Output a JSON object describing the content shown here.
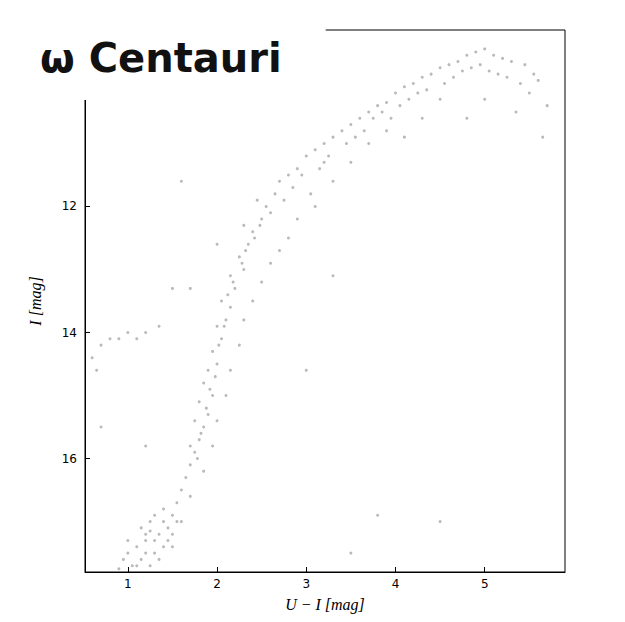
{
  "chart_data": {
    "type": "scatter",
    "title": "ω Centauri",
    "x_label": "U − I [mag]",
    "y_label": "I [mag]",
    "color": "#8a8a8a",
    "marker": "circle",
    "grid": false,
    "xlim": [
      0.52,
      5.9
    ],
    "xticks": [
      1,
      2,
      3,
      4,
      5
    ],
    "ylim": [
      17.8,
      9.2
    ],
    "yticks": [
      12,
      14,
      16
    ],
    "x": [
      1.05,
      1.15,
      1.25,
      1.3,
      1.1,
      1.2,
      1.35,
      1.4,
      0.95,
      1.0,
      1.15,
      1.25,
      1.45,
      1.5,
      1.3,
      1.55,
      1.6,
      1.4,
      1.2,
      0.9,
      1.65,
      1.7,
      1.75,
      1.8,
      1.7,
      1.85,
      1.75,
      1.9,
      1.8,
      1.95,
      1.85,
      1.9,
      2.0,
      1.95,
      2.05,
      2.0,
      2.1,
      2.15,
      2.05,
      2.2,
      2.15,
      2.3,
      2.25,
      2.35,
      2.4,
      2.3,
      2.5,
      2.55,
      2.45,
      2.65,
      2.7,
      2.8,
      2.9,
      3.0,
      3.1,
      3.2,
      3.3,
      3.4,
      3.5,
      3.6,
      3.7,
      3.8,
      3.9,
      4.0,
      4.1,
      4.2,
      4.3,
      4.4,
      4.5,
      4.6,
      4.7,
      4.8,
      4.9,
      5.0,
      5.1,
      5.2,
      5.3,
      5.45,
      5.6,
      5.7,
      5.5,
      5.35,
      5.0,
      4.8,
      4.5,
      4.3,
      4.1,
      3.9,
      3.7,
      3.5,
      3.3,
      3.1,
      2.9,
      3.05,
      3.2,
      2.8,
      2.6,
      2.7,
      2.5,
      2.4,
      2.3,
      2.25,
      2.15,
      2.1,
      2.0,
      1.95,
      1.85,
      1.7,
      1.6,
      1.5,
      0.6,
      0.7,
      0.8,
      0.9,
      1.0,
      1.1,
      1.2,
      1.35,
      1.5,
      0.65,
      1.6,
      2.0,
      3.3,
      3.8,
      4.5,
      3.5,
      1.7,
      0.7,
      1.2,
      3.0,
      1.78,
      1.82,
      1.88,
      1.92,
      1.98,
      2.02,
      2.08,
      2.12,
      2.18,
      2.28,
      2.32,
      2.42,
      2.48,
      2.6,
      2.75,
      2.85,
      2.95,
      3.15,
      3.25,
      3.45,
      3.55,
      3.65,
      3.75,
      3.85,
      3.95,
      4.05,
      4.15,
      4.25,
      4.35,
      4.55,
      4.65,
      4.75,
      4.85,
      4.95,
      5.05,
      5.15,
      5.25,
      5.4,
      5.55,
      5.65,
      1.0,
      1.1,
      1.2,
      1.3,
      1.35,
      1.45,
      1.25,
      1.5,
      1.55,
      1.4
    ],
    "values": [
      17.7,
      17.6,
      17.7,
      17.5,
      17.4,
      17.3,
      17.2,
      17.4,
      17.6,
      17.3,
      17.1,
      17.0,
      17.1,
      16.9,
      16.9,
      16.7,
      16.5,
      16.8,
      17.2,
      17.75,
      16.3,
      16.1,
      15.9,
      15.7,
      15.8,
      15.5,
      15.4,
      15.3,
      15.1,
      15.0,
      14.8,
      14.6,
      14.5,
      14.3,
      14.1,
      13.9,
      13.8,
      13.6,
      13.5,
      13.3,
      13.1,
      13.0,
      12.8,
      12.6,
      12.4,
      12.3,
      12.2,
      12.0,
      11.9,
      11.8,
      11.6,
      11.5,
      11.4,
      11.2,
      11.1,
      11.0,
      10.9,
      10.8,
      10.7,
      10.6,
      10.5,
      10.4,
      10.35,
      10.2,
      10.1,
      10.05,
      9.95,
      9.9,
      9.8,
      9.75,
      9.7,
      9.6,
      9.55,
      9.5,
      9.6,
      9.65,
      9.7,
      9.75,
      10.0,
      10.4,
      10.2,
      10.5,
      10.3,
      10.6,
      10.3,
      10.6,
      10.9,
      10.8,
      11.0,
      11.3,
      11.6,
      12.0,
      12.2,
      11.8,
      11.3,
      12.5,
      12.9,
      12.7,
      13.2,
      13.5,
      13.8,
      14.2,
      14.6,
      15.0,
      15.4,
      15.8,
      16.2,
      16.6,
      17.0,
      17.4,
      14.4,
      14.2,
      14.1,
      14.1,
      14.0,
      14.1,
      14.0,
      13.9,
      13.3,
      14.6,
      11.6,
      12.6,
      13.1,
      16.9,
      17.0,
      17.5,
      13.3,
      15.5,
      15.8,
      14.6,
      16.0,
      15.6,
      15.2,
      14.9,
      14.7,
      14.2,
      13.9,
      13.4,
      13.2,
      12.9,
      12.7,
      12.5,
      12.3,
      12.1,
      11.9,
      11.7,
      11.5,
      11.4,
      11.2,
      11.0,
      10.9,
      10.8,
      10.6,
      10.5,
      10.6,
      10.4,
      10.3,
      10.2,
      10.15,
      10.05,
      9.95,
      9.85,
      9.8,
      9.75,
      9.85,
      9.9,
      9.95,
      10.05,
      9.9,
      10.9,
      17.5,
      17.7,
      17.5,
      17.3,
      17.6,
      17.3,
      17.15,
      17.2,
      17.0,
      17.0
    ]
  }
}
